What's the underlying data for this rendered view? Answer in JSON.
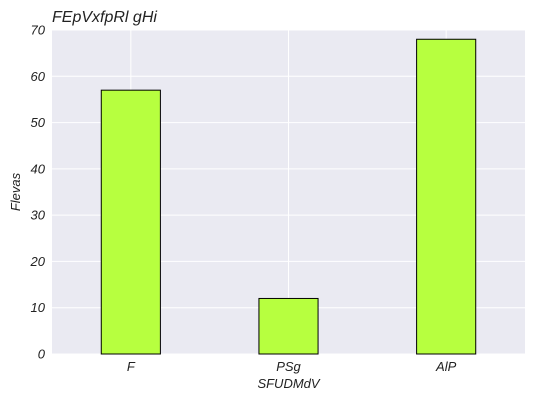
{
  "chart_data": {
    "type": "bar",
    "title": "FEpVxfpRl gHi",
    "xlabel": "SFUDMdV",
    "ylabel": "Flevas",
    "categories": [
      "F",
      "PSg",
      "AlP"
    ],
    "values": [
      57,
      12,
      68
    ],
    "ylim": [
      0,
      70
    ],
    "yticks": [
      0,
      10,
      20,
      30,
      40,
      50,
      60,
      70
    ],
    "grid": true,
    "legend": "none",
    "colors": {
      "bar": "#b7ff3f",
      "background": "#eaeaf2"
    }
  }
}
